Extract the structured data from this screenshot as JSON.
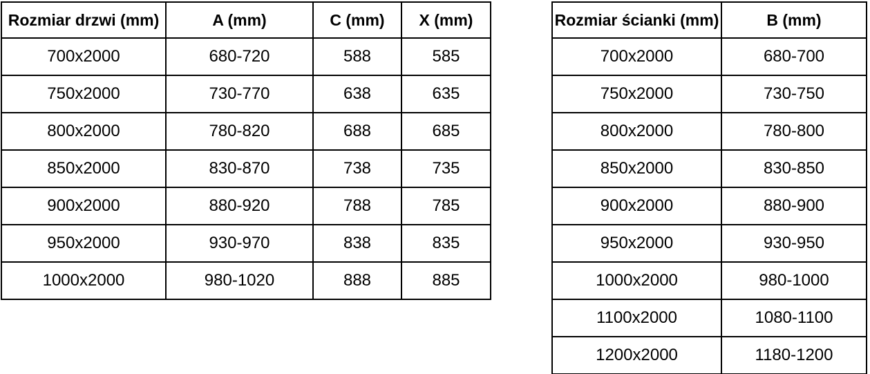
{
  "page": {
    "background_color": "#ffffff",
    "border_color": "#000000",
    "text_color": "#000000"
  },
  "tables": [
    {
      "name": "door-sizes",
      "headers": [
        "Rozmiar drzwi (mm)",
        "A (mm)",
        "C (mm)",
        "X (mm)"
      ],
      "rows": [
        [
          "700x2000",
          "680-720",
          "588",
          "585"
        ],
        [
          "750x2000",
          "730-770",
          "638",
          "635"
        ],
        [
          "800x2000",
          "780-820",
          "688",
          "685"
        ],
        [
          "850x2000",
          "830-870",
          "738",
          "735"
        ],
        [
          "900x2000",
          "880-920",
          "788",
          "785"
        ],
        [
          "950x2000",
          "930-970",
          "838",
          "835"
        ],
        [
          "1000x2000",
          "980-1020",
          "888",
          "885"
        ]
      ]
    },
    {
      "name": "wall-sizes",
      "headers": [
        "Rozmiar ścianki (mm)",
        "B (mm)"
      ],
      "rows": [
        [
          "700x2000",
          "680-700"
        ],
        [
          "750x2000",
          "730-750"
        ],
        [
          "800x2000",
          "780-800"
        ],
        [
          "850x2000",
          "830-850"
        ],
        [
          "900x2000",
          "880-900"
        ],
        [
          "950x2000",
          "930-950"
        ],
        [
          "1000x2000",
          "980-1000"
        ],
        [
          "1100x2000",
          "1080-1100"
        ],
        [
          "1200x2000",
          "1180-1200"
        ]
      ]
    }
  ]
}
